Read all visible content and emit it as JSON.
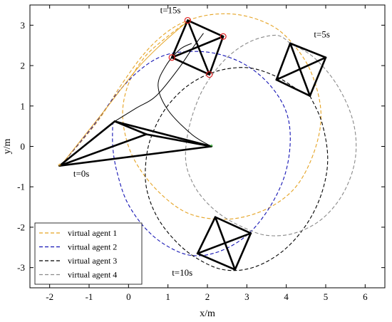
{
  "chart_data": {
    "type": "line",
    "xlabel": "x/m",
    "ylabel": "y/m",
    "xlim": [
      -2.5,
      6.5
    ],
    "ylim": [
      -3.5,
      3.5
    ],
    "xticks": [
      -2,
      -1,
      0,
      1,
      2,
      3,
      4,
      5,
      6
    ],
    "yticks": [
      -3,
      -2,
      -1,
      0,
      1,
      2,
      3
    ],
    "xtick_labels": [
      "-2",
      "-1",
      "0",
      "1",
      "2",
      "3",
      "4",
      "5",
      "6"
    ],
    "ytick_labels": [
      "-3",
      "-2",
      "-1",
      "0",
      "1",
      "2",
      "3"
    ],
    "grid": false,
    "legend_position": "bottom-left",
    "series": [
      {
        "name": "virtual agent 1",
        "color": "#E5A323",
        "dash": "dashed",
        "points": [
          [
            -1.7,
            -0.45
          ],
          [
            -0.8,
            0.6
          ],
          [
            -0.2,
            1.5
          ],
          [
            0.4,
            2.3
          ],
          [
            1.0,
            2.85
          ],
          [
            1.6,
            3.15
          ],
          [
            2.3,
            3.28
          ],
          [
            3.0,
            3.22
          ],
          [
            3.7,
            2.95
          ],
          [
            4.2,
            2.5
          ],
          [
            4.6,
            1.9
          ],
          [
            4.85,
            1.1
          ],
          [
            4.85,
            0.4
          ],
          [
            4.6,
            -0.4
          ],
          [
            4.2,
            -1.05
          ],
          [
            3.6,
            -1.5
          ],
          [
            2.9,
            -1.75
          ],
          [
            2.2,
            -1.8
          ],
          [
            1.5,
            -1.65
          ],
          [
            0.9,
            -1.25
          ],
          [
            0.35,
            -0.65
          ],
          [
            0.0,
            0.0
          ],
          [
            -0.15,
            0.8
          ],
          [
            0.0,
            1.55
          ],
          [
            0.4,
            2.2
          ],
          [
            0.9,
            2.65
          ],
          [
            1.5,
            3.1
          ]
        ]
      },
      {
        "name": "virtual agent 2",
        "color": "#1414B4",
        "dash": "dashed",
        "points": [
          [
            -1.7,
            -0.45
          ],
          [
            -0.9,
            0.5
          ],
          [
            -0.3,
            1.3
          ],
          [
            0.3,
            1.9
          ],
          [
            0.9,
            2.25
          ],
          [
            1.6,
            2.35
          ],
          [
            2.3,
            2.28
          ],
          [
            3.0,
            2.0
          ],
          [
            3.6,
            1.5
          ],
          [
            4.0,
            0.85
          ],
          [
            4.1,
            0.1
          ],
          [
            3.95,
            -0.75
          ],
          [
            3.55,
            -1.55
          ],
          [
            3.0,
            -2.2
          ],
          [
            2.3,
            -2.6
          ],
          [
            1.6,
            -2.7
          ],
          [
            0.95,
            -2.45
          ],
          [
            0.4,
            -2.0
          ],
          [
            -0.05,
            -1.35
          ],
          [
            -0.3,
            -0.6
          ],
          [
            -0.4,
            0.0
          ],
          [
            -0.4,
            0.6
          ]
        ]
      },
      {
        "name": "virtual agent 3",
        "color": "#000000",
        "dash": "dashed",
        "points": [
          [
            4.6,
            1.25
          ],
          [
            4.9,
            0.6
          ],
          [
            5.05,
            -0.3
          ],
          [
            4.9,
            -1.15
          ],
          [
            4.5,
            -1.95
          ],
          [
            3.9,
            -2.6
          ],
          [
            3.15,
            -3.0
          ],
          [
            2.4,
            -3.05
          ],
          [
            1.7,
            -2.75
          ],
          [
            1.15,
            -2.3
          ],
          [
            0.7,
            -1.7
          ],
          [
            0.45,
            -1.0
          ],
          [
            0.45,
            -0.3
          ],
          [
            0.6,
            0.3
          ],
          [
            0.95,
            0.95
          ],
          [
            1.5,
            1.5
          ],
          [
            2.2,
            1.85
          ],
          [
            3.0,
            1.95
          ],
          [
            3.7,
            1.75
          ],
          [
            4.3,
            1.4
          ],
          [
            4.6,
            1.25
          ]
        ]
      },
      {
        "name": "virtual agent 4",
        "color": "#8A8A8A",
        "dash": "dashed",
        "points": [
          [
            4.1,
            2.55
          ],
          [
            4.7,
            2.2
          ],
          [
            5.3,
            1.5
          ],
          [
            5.7,
            0.6
          ],
          [
            5.75,
            -0.3
          ],
          [
            5.45,
            -1.15
          ],
          [
            4.9,
            -1.8
          ],
          [
            4.2,
            -2.15
          ],
          [
            3.5,
            -2.2
          ],
          [
            2.9,
            -2.0
          ],
          [
            2.35,
            -1.7
          ],
          [
            1.9,
            -1.3
          ],
          [
            1.6,
            -0.85
          ],
          [
            1.45,
            -0.35
          ],
          [
            1.5,
            0.3
          ],
          [
            1.7,
            1.0
          ],
          [
            2.0,
            1.6
          ],
          [
            2.5,
            2.2
          ],
          [
            3.1,
            2.6
          ],
          [
            3.75,
            2.75
          ],
          [
            4.1,
            2.55
          ]
        ]
      }
    ],
    "formation_lines": [
      {
        "name": "path-center",
        "color": "#000000",
        "points": [
          [
            2.1,
            0.0
          ],
          [
            1.6,
            0.3
          ],
          [
            1.0,
            0.9
          ],
          [
            0.75,
            1.5
          ],
          [
            0.95,
            2.0
          ],
          [
            1.3,
            2.4
          ],
          [
            1.6,
            2.55
          ]
        ]
      },
      {
        "name": "path-black-solid",
        "color": "#000000",
        "points": [
          [
            -0.35,
            0.62
          ],
          [
            0.2,
            0.95
          ],
          [
            0.7,
            1.25
          ],
          [
            1.25,
            1.9
          ],
          [
            1.6,
            2.4
          ],
          [
            1.9,
            2.8
          ]
        ]
      },
      {
        "name": "path-orange-solid",
        "color": "#E5A323",
        "points": [
          [
            -1.7,
            -0.45
          ],
          [
            -0.6,
            0.9
          ],
          [
            0.2,
            1.9
          ],
          [
            0.8,
            2.5
          ],
          [
            1.5,
            3.1
          ]
        ]
      }
    ],
    "formations": [
      {
        "label": "t=0s",
        "nodes": [
          [
            -1.75,
            -0.48
          ],
          [
            -0.35,
            0.62
          ],
          [
            0.45,
            0.3
          ],
          [
            2.1,
            0.0
          ]
        ]
      },
      {
        "label": "t=5s",
        "nodes": [
          [
            4.1,
            2.55
          ],
          [
            5.0,
            2.2
          ],
          [
            4.6,
            1.25
          ],
          [
            3.75,
            1.65
          ]
        ]
      },
      {
        "label": "t=10s",
        "nodes": [
          [
            2.2,
            -1.75
          ],
          [
            3.1,
            -2.15
          ],
          [
            2.7,
            -3.05
          ],
          [
            1.75,
            -2.65
          ]
        ]
      },
      {
        "label": "t=15s",
        "nodes": [
          [
            1.5,
            3.12
          ],
          [
            2.4,
            2.72
          ],
          [
            2.05,
            1.78
          ],
          [
            1.1,
            2.2
          ]
        ]
      }
    ],
    "marker_circles": [
      [
        1.5,
        3.12
      ],
      [
        2.4,
        2.72
      ],
      [
        2.05,
        1.78
      ],
      [
        1.1,
        2.2
      ]
    ],
    "start_marker": [
      -1.75,
      -0.48
    ],
    "goal_marker": [
      2.1,
      0.0
    ],
    "annotations": [
      {
        "text": "t=0s",
        "x": -1.4,
        "y": -0.75
      },
      {
        "text": "t=5s",
        "x": 4.7,
        "y": 2.7
      },
      {
        "text": "t=10s",
        "x": 1.1,
        "y": -3.2
      },
      {
        "text": "t=15s",
        "x": 0.8,
        "y": 3.3
      }
    ]
  }
}
